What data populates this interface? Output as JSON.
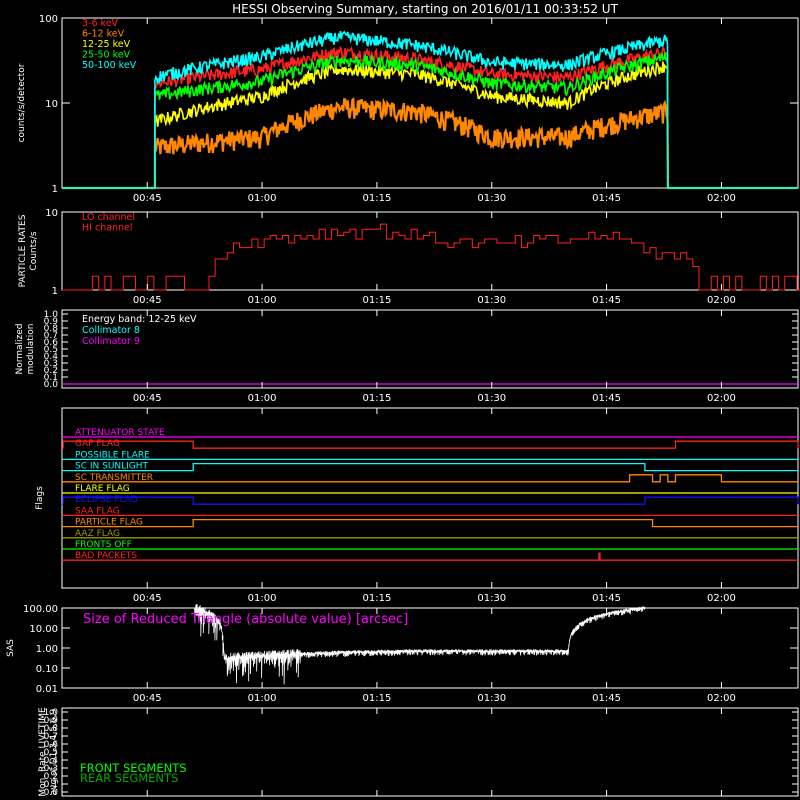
{
  "title": "HESSI Observing Summary, starting on 2016/01/11 00:33:52 UT",
  "time_ticks": [
    "00:45",
    "01:00",
    "01:15",
    "01:30",
    "01:45",
    "02:00"
  ],
  "colors": {
    "bg": "#000000",
    "axis": "#ffffff",
    "red": "#ff2020",
    "orange": "#ff8800",
    "yellow": "#ffff00",
    "green": "#00ff00",
    "cyan": "#00ffff",
    "magenta": "#ff00ff",
    "blue": "#1010ff",
    "olive": "#9a9a00",
    "darkgreen": "#00aa00"
  },
  "panels": {
    "counts": {
      "ylabel": "counts/s/detector",
      "yticks": [
        "1",
        "10",
        "100"
      ],
      "legend": [
        "3-6 keV",
        "6-12 keV",
        "12-25 keV",
        "25-50 keV",
        "50-100 keV"
      ]
    },
    "particle": {
      "ylabel1": "PARTICLE RATES",
      "ylabel2": "Counts/s",
      "yticks": [
        "1",
        "10"
      ],
      "legend": [
        "LO channel",
        "HI channel"
      ]
    },
    "modulation": {
      "ylabel1": "Normalized",
      "ylabel2": "modulation",
      "yticks": [
        "0.0",
        "0.1",
        "0.2",
        "0.3",
        "0.4",
        "0.5",
        "0.6",
        "0.7",
        "0.8",
        "0.9",
        "1.0"
      ],
      "legend": [
        "Energy band: 12-25 keV",
        "Collimator 8",
        "Collimator 9"
      ]
    },
    "flags": {
      "ylabel": "Flags",
      "names": [
        "ATTENUATOR STATE",
        "GAP FLAG",
        "POSSIBLE FLARE",
        "SC IN SUNLIGHT",
        "SC TRANSMITTER",
        "FLARE FLAG",
        "ECLIPSE FLAG",
        "SAA FLAG",
        "PARTICLE FLAG",
        "AAZ FLAG",
        "FRONTS OFF",
        "BAD PACKETS"
      ]
    },
    "sas": {
      "ylabel": "SAS",
      "yticks": [
        "0.01",
        "0.10",
        "1.00",
        "10.00",
        "100.00"
      ],
      "legend": "Size of Reduced Triangle (absolute value) [arcsec]"
    },
    "livetime": {
      "ylabel1": "Mon. Rate LIVETIME",
      "ylabel2": "avg of D1,3,4,5,6,9",
      "yticks": [
        "0.0",
        "0.1",
        "0.2",
        "0.3",
        "0.4",
        "0.5",
        "0.6",
        "0.7",
        "0.8",
        "0.9",
        "1.0"
      ],
      "legend": [
        "FRONT SEGMENTS",
        "REAR SEGMENTS"
      ]
    }
  },
  "chart_data": [
    {
      "type": "line",
      "panel": "counts",
      "yscale": "log",
      "ylim": [
        1,
        100
      ],
      "x_range": [
        "00:33:52",
        "02:10:00"
      ],
      "data_interval": [
        "00:46",
        "01:53"
      ],
      "series": [
        {
          "name": "3-6 keV",
          "x": [
            "00:46",
            "01:00",
            "01:10",
            "01:20",
            "01:30",
            "01:40",
            "01:53"
          ],
          "values": [
            17,
            25,
            40,
            33,
            22,
            20,
            40
          ]
        },
        {
          "name": "6-12 keV",
          "x": [
            "00:46",
            "01:00",
            "01:10",
            "01:20",
            "01:30",
            "01:40",
            "01:53"
          ],
          "values": [
            3,
            4,
            9,
            8,
            4,
            4,
            8
          ]
        },
        {
          "name": "12-25 keV",
          "x": [
            "00:46",
            "01:00",
            "01:10",
            "01:20",
            "01:30",
            "01:40",
            "01:53"
          ],
          "values": [
            6,
            12,
            25,
            22,
            12,
            10,
            28
          ]
        },
        {
          "name": "25-50 keV",
          "x": [
            "00:46",
            "01:00",
            "01:10",
            "01:20",
            "01:30",
            "01:40",
            "01:53"
          ],
          "values": [
            12,
            18,
            32,
            28,
            17,
            15,
            35
          ]
        },
        {
          "name": "50-100 keV",
          "x": [
            "00:46",
            "01:00",
            "01:10",
            "01:20",
            "01:30",
            "01:40",
            "01:53"
          ],
          "values": [
            20,
            35,
            60,
            48,
            30,
            28,
            55
          ]
        }
      ]
    },
    {
      "type": "line",
      "panel": "particle",
      "yscale": "log",
      "ylim": [
        1,
        10
      ],
      "series": [
        {
          "name": "LO channel",
          "x": [
            "00:34",
            "00:50",
            "00:53",
            "00:57",
            "01:05",
            "01:15",
            "01:25",
            "01:35",
            "01:45",
            "01:52",
            "02:00",
            "02:10"
          ],
          "values": [
            1.5,
            1.5,
            2,
            4,
            5,
            6,
            4,
            4,
            5,
            3,
            1.5,
            1.5
          ]
        }
      ]
    },
    {
      "type": "line",
      "panel": "modulation",
      "ylim": [
        0,
        1
      ],
      "series": [
        {
          "name": "Collimator 9",
          "x": [
            "00:34",
            "02:10"
          ],
          "values": [
            0,
            0
          ]
        }
      ]
    },
    {
      "type": "table",
      "panel": "flags",
      "states": [
        {
          "flag": "GAP FLAG",
          "on": [
            [
              "00:34",
              "00:51"
            ],
            [
              "01:54",
              "02:10"
            ]
          ]
        },
        {
          "flag": "SC IN SUNLIGHT",
          "on": [
            [
              "00:51",
              "01:50"
            ]
          ]
        },
        {
          "flag": "SC TRANSMITTER",
          "on": [
            [
              "01:48",
              "01:51"
            ],
            [
              "01:52",
              "01:53"
            ],
            [
              "01:54",
              "02:00"
            ]
          ]
        },
        {
          "flag": "ECLIPSE FLAG",
          "on": [
            [
              "00:34",
              "00:51"
            ],
            [
              "01:50",
              "02:10"
            ]
          ]
        },
        {
          "flag": "PARTICLE FLAG",
          "on": [
            [
              "00:51",
              "01:51"
            ]
          ]
        },
        {
          "flag": "BAD PACKETS",
          "on": [
            [
              "01:44",
              "01:44"
            ]
          ]
        }
      ]
    },
    {
      "type": "line",
      "panel": "sas",
      "yscale": "log",
      "ylim": [
        0.01,
        100
      ],
      "series": [
        {
          "name": "Size of Reduced Triangle (absolute value) [arcsec]",
          "x": [
            "00:51",
            "00:55",
            "01:00",
            "01:10",
            "01:20",
            "01:30",
            "01:40",
            "01:50"
          ],
          "values": [
            100,
            0.3,
            0.4,
            0.6,
            0.7,
            0.7,
            0.7,
            100
          ]
        }
      ]
    },
    {
      "type": "line",
      "panel": "livetime",
      "ylim": [
        0,
        1
      ],
      "series": []
    }
  ]
}
